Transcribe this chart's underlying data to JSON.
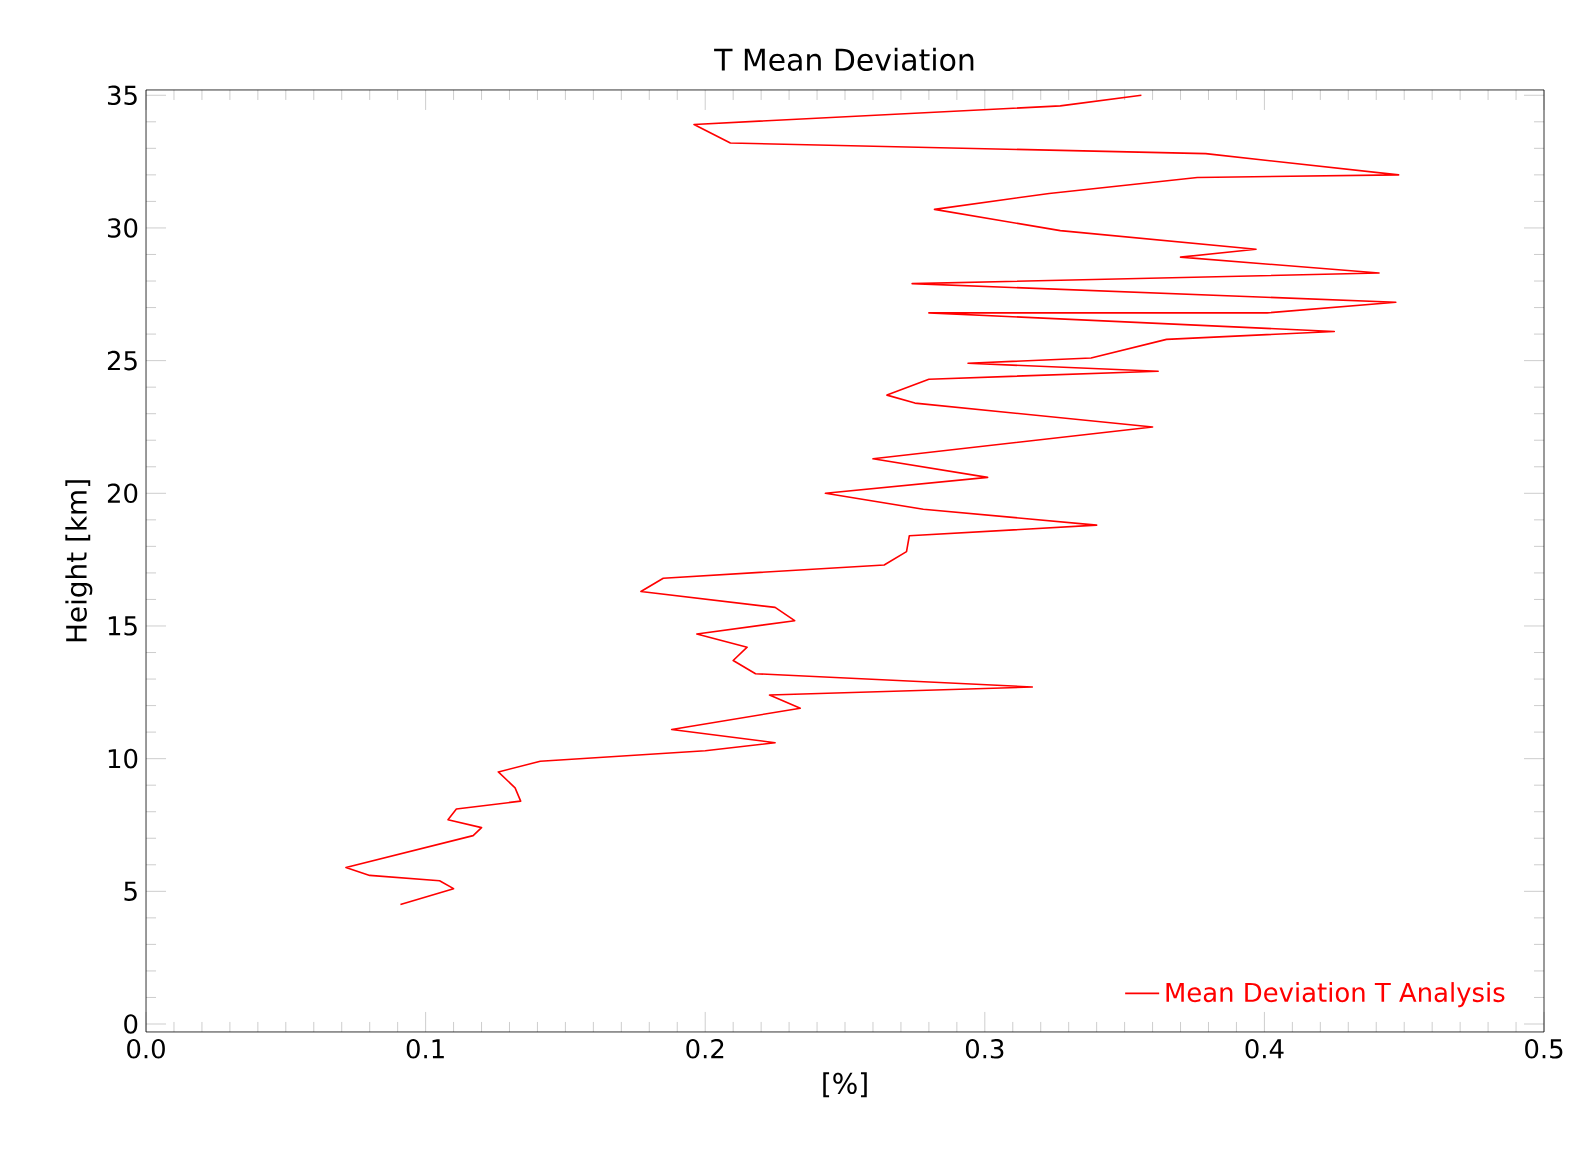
{
  "chart_data": {
    "type": "line",
    "title": "T Mean Deviation",
    "xlabel": "[%]",
    "ylabel": "Height [km]",
    "xlim": [
      0,
      0.5
    ],
    "ylim": [
      -0.3,
      35.2
    ],
    "xticks": [
      {
        "value": 0,
        "label": "0.0"
      },
      {
        "value": 0.1,
        "label": "0.1"
      },
      {
        "value": 0.2,
        "label": "0.2"
      },
      {
        "value": 0.3,
        "label": "0.3"
      },
      {
        "value": 0.4,
        "label": "0.4"
      },
      {
        "value": 0.5,
        "label": "0.5"
      }
    ],
    "yticks": [
      0,
      5,
      10,
      15,
      20,
      25,
      30,
      35
    ],
    "grid": false,
    "legend": "bottom right",
    "marker": "none",
    "line_style": "solid",
    "series": [
      {
        "name": "Mean Deviation T Analysis",
        "color": "#ff0000",
        "x": [
          0.091,
          0.11,
          0.105,
          0.08,
          0.0715,
          0.117,
          0.12,
          0.108,
          0.111,
          0.134,
          0.132,
          0.126,
          0.141,
          0.2,
          0.225,
          0.188,
          0.234,
          0.223,
          0.317,
          0.218,
          0.21,
          0.215,
          0.197,
          0.232,
          0.225,
          0.177,
          0.185,
          0.264,
          0.272,
          0.273,
          0.34,
          0.278,
          0.243,
          0.301,
          0.26,
          0.36,
          0.275,
          0.265,
          0.28,
          0.362,
          0.294,
          0.338,
          0.365,
          0.425,
          0.28,
          0.401,
          0.447,
          0.274,
          0.441,
          0.37,
          0.397,
          0.327,
          0.282,
          0.323,
          0.376,
          0.448,
          0.379,
          0.209,
          0.196,
          0.327,
          0.356
        ],
        "values": [
          4.5,
          5.1,
          5.4,
          5.6,
          5.9,
          7.1,
          7.4,
          7.7,
          8.1,
          8.4,
          8.9,
          9.5,
          9.9,
          10.3,
          10.6,
          11.1,
          11.9,
          12.4,
          12.7,
          13.2,
          13.7,
          14.2,
          14.7,
          15.2,
          15.7,
          16.3,
          16.8,
          17.3,
          17.8,
          18.4,
          18.8,
          19.4,
          20.0,
          20.6,
          21.3,
          22.5,
          23.4,
          23.7,
          24.3,
          24.6,
          24.9,
          25.1,
          25.8,
          26.1,
          26.8,
          26.8,
          27.2,
          27.9,
          28.3,
          28.9,
          29.2,
          29.9,
          30.7,
          31.3,
          31.9,
          32.0,
          32.8,
          33.2,
          33.9,
          34.6,
          35.0
        ]
      }
    ]
  }
}
